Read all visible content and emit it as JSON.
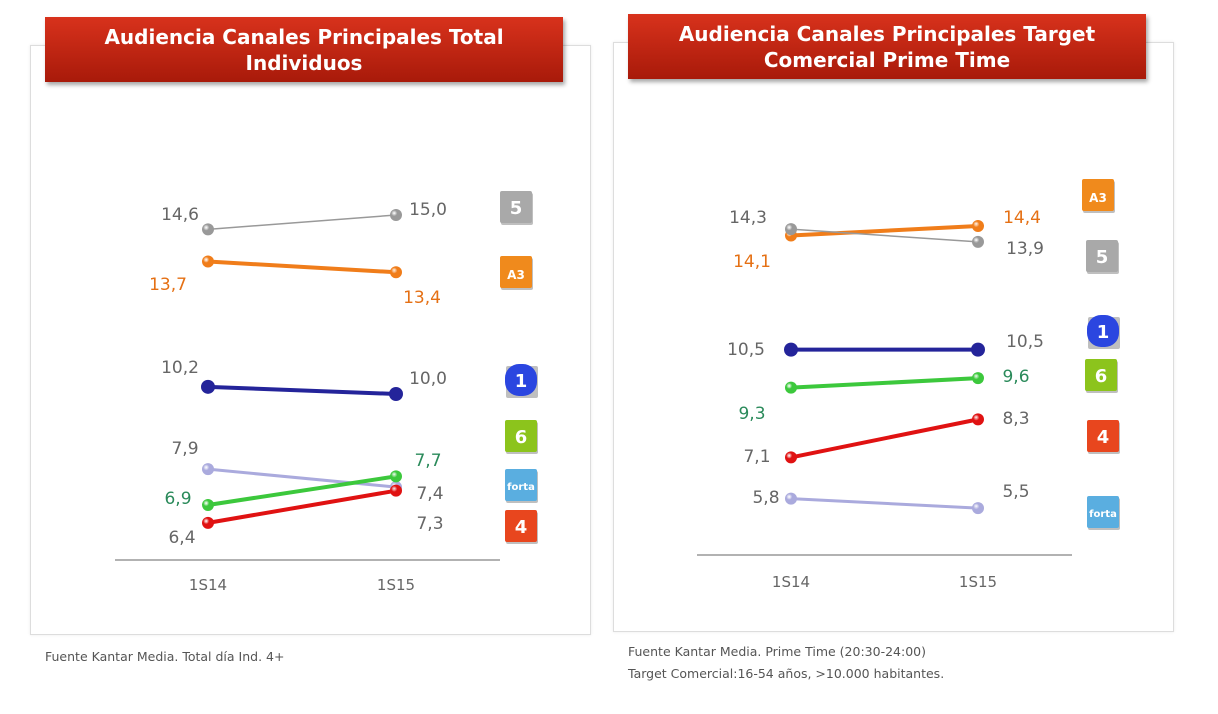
{
  "colors": {
    "telecinco": "#999999",
    "antena3": "#f07d1a",
    "la1": "#24249a",
    "lasexta": "#3cc83c",
    "cuatro": "#e01212",
    "forta": "#aaaadd",
    "label_gray": "#666666",
    "label_orange": "#e57014",
    "label_green": "#2a8a5a"
  },
  "chart_data": [
    {
      "type": "line",
      "title": "Audiencia Canales Principales Total Individuos",
      "categories": [
        "1S14",
        "1S15"
      ],
      "series": [
        {
          "name": "Telecinco",
          "key": "telecinco",
          "values": [
            14.6,
            15.0
          ],
          "labels": [
            "14,6",
            "15,0"
          ]
        },
        {
          "name": "Antena 3",
          "key": "antena3",
          "values": [
            13.7,
            13.4
          ],
          "labels": [
            "13,7",
            "13,4"
          ]
        },
        {
          "name": "La 1",
          "key": "la1",
          "values": [
            10.2,
            10.0
          ],
          "labels": [
            "10,2",
            "10,0"
          ]
        },
        {
          "name": "Forta",
          "key": "forta",
          "values": [
            7.9,
            7.4
          ],
          "labels": [
            "7,9",
            "7,4"
          ]
        },
        {
          "name": "La Sexta",
          "key": "lasexta",
          "values": [
            6.9,
            7.7
          ],
          "labels": [
            "6,9",
            "7,7"
          ]
        },
        {
          "name": "Cuatro",
          "key": "cuatro",
          "values": [
            6.4,
            7.3
          ],
          "labels": [
            "6,4",
            "7,3"
          ]
        }
      ],
      "footnote": "Fuente Kantar Media. Total día Ind. 4+"
    },
    {
      "type": "line",
      "title": "Audiencia Canales Principales Target Comercial Prime Time",
      "categories": [
        "1S14",
        "1S15"
      ],
      "series": [
        {
          "name": "Antena 3",
          "key": "antena3",
          "values": [
            14.1,
            14.4
          ],
          "labels": [
            "14,1",
            "14,4"
          ]
        },
        {
          "name": "Telecinco",
          "key": "telecinco",
          "values": [
            14.3,
            13.9
          ],
          "labels": [
            "14,3",
            "13,9"
          ]
        },
        {
          "name": "La 1",
          "key": "la1",
          "values": [
            10.5,
            10.5
          ],
          "labels": [
            "10,5",
            "10,5"
          ]
        },
        {
          "name": "La Sexta",
          "key": "lasexta",
          "values": [
            9.3,
            9.6
          ],
          "labels": [
            "9,3",
            "9,6"
          ]
        },
        {
          "name": "Cuatro",
          "key": "cuatro",
          "values": [
            7.1,
            8.3
          ],
          "labels": [
            "7,1",
            "8,3"
          ]
        },
        {
          "name": "Forta",
          "key": "forta",
          "values": [
            5.8,
            5.5
          ],
          "labels": [
            "5,8",
            "5,5"
          ]
        }
      ],
      "footnote": "Fuente Kantar Media.  Prime Time  (20:30-24:00)",
      "footnote2": "Target Comercial:16-54 años, >10.000 habitantes."
    }
  ],
  "logos": {
    "telecinco": "5",
    "antena3": "A3",
    "la1": "1",
    "lasexta": "6",
    "cuatro": "4",
    "forta": "forta"
  }
}
